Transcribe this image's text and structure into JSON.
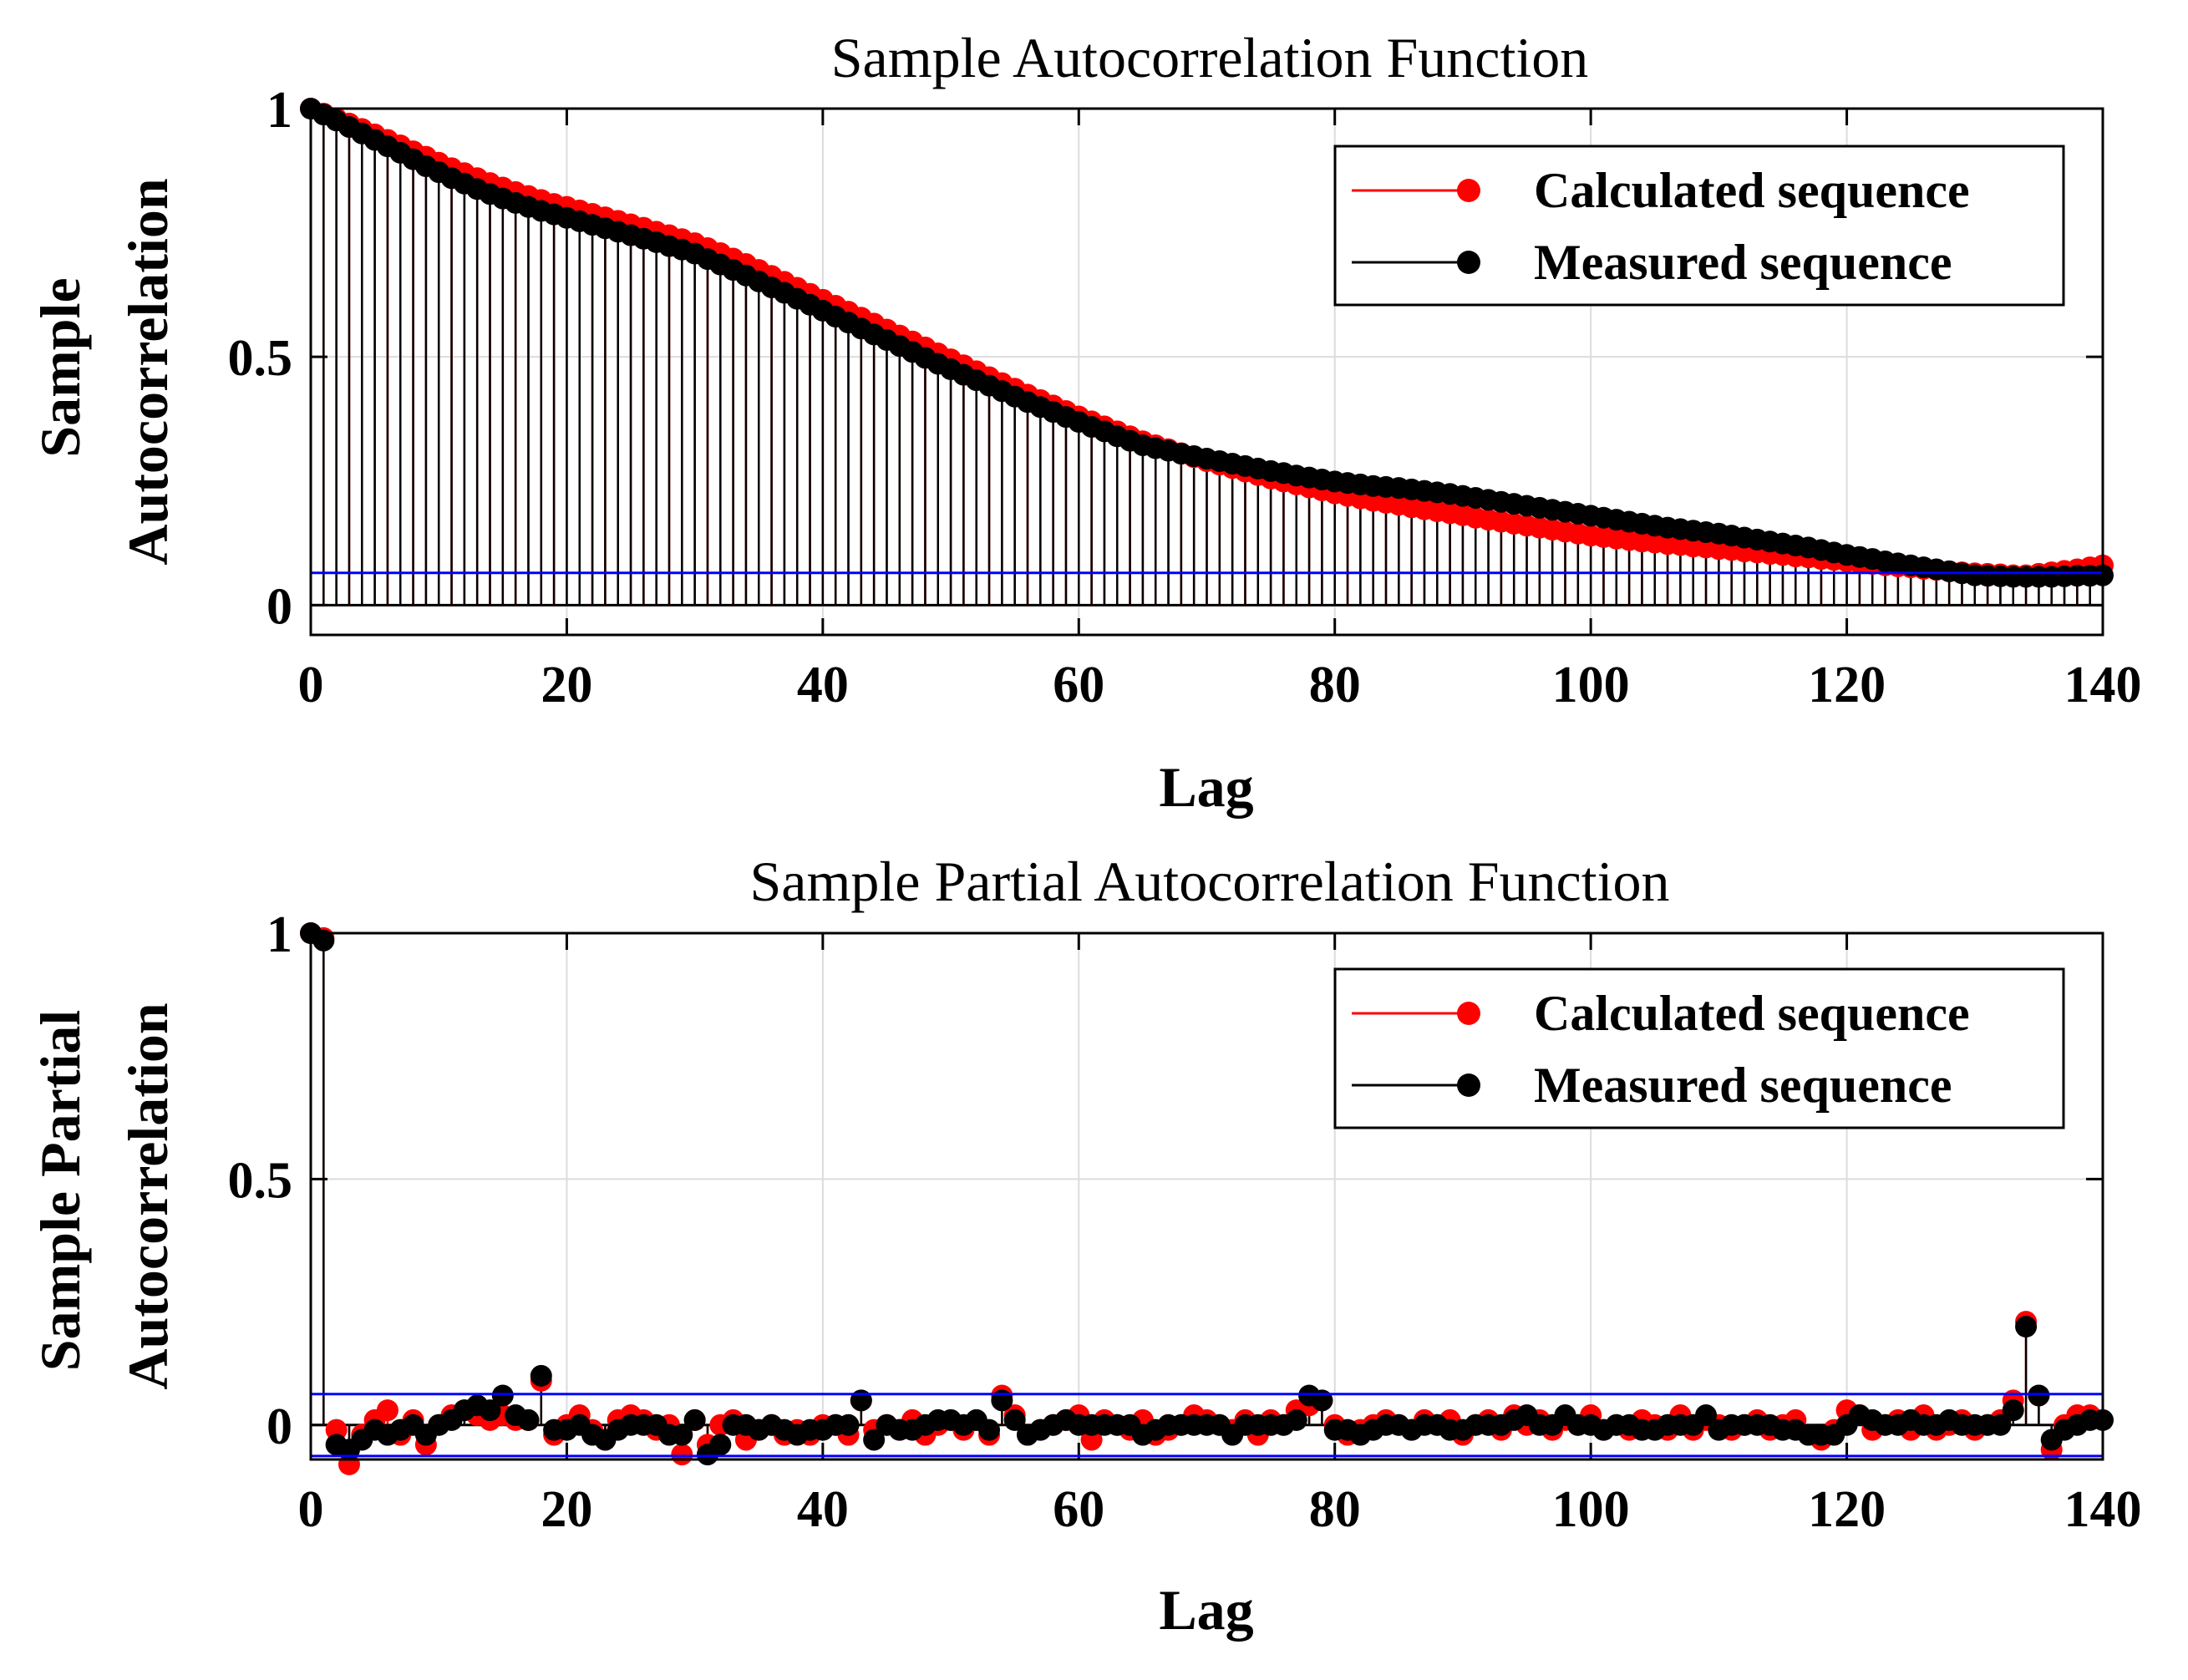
{
  "chart_data": [
    {
      "type": "stem",
      "title": "Sample Autocorrelation Function",
      "xlabel": "Lag",
      "ylabel_lines": [
        "Sample",
        "Autocorrelation"
      ],
      "xlim": [
        0,
        140
      ],
      "ylim": [
        -0.06,
        1.0
      ],
      "xticks": [
        "0",
        "20",
        "40",
        "60",
        "80",
        "100",
        "120",
        "140"
      ],
      "yticks": [
        "0",
        "0.5",
        "1"
      ],
      "confidence_bounds": [
        0.065
      ],
      "legend": {
        "position": "top-right",
        "entries": [
          "Calculated sequence",
          "Measured sequence"
        ]
      },
      "series": [
        {
          "name": "Calculated sequence",
          "color": "#ff0000",
          "x_start": 0,
          "values": [
            1.0,
            0.99,
            0.98,
            0.97,
            0.959,
            0.948,
            0.937,
            0.926,
            0.914,
            0.903,
            0.891,
            0.88,
            0.87,
            0.86,
            0.85,
            0.841,
            0.832,
            0.824,
            0.816,
            0.808,
            0.802,
            0.795,
            0.788,
            0.781,
            0.774,
            0.767,
            0.76,
            0.752,
            0.745,
            0.737,
            0.729,
            0.719,
            0.709,
            0.698,
            0.687,
            0.675,
            0.663,
            0.651,
            0.639,
            0.627,
            0.615,
            0.603,
            0.591,
            0.579,
            0.567,
            0.555,
            0.543,
            0.531,
            0.519,
            0.507,
            0.495,
            0.483,
            0.471,
            0.459,
            0.447,
            0.436,
            0.424,
            0.413,
            0.402,
            0.391,
            0.38,
            0.37,
            0.36,
            0.35,
            0.34,
            0.33,
            0.322,
            0.314,
            0.306,
            0.298,
            0.29,
            0.283,
            0.276,
            0.269,
            0.262,
            0.255,
            0.249,
            0.243,
            0.237,
            0.231,
            0.225,
            0.22,
            0.215,
            0.21,
            0.206,
            0.202,
            0.197,
            0.193,
            0.189,
            0.185,
            0.181,
            0.176,
            0.172,
            0.168,
            0.164,
            0.16,
            0.156,
            0.152,
            0.148,
            0.144,
            0.14,
            0.137,
            0.134,
            0.131,
            0.128,
            0.126,
            0.123,
            0.121,
            0.118,
            0.116,
            0.113,
            0.111,
            0.108,
            0.106,
            0.103,
            0.101,
            0.098,
            0.096,
            0.093,
            0.091,
            0.088,
            0.085,
            0.083,
            0.08,
            0.078,
            0.076,
            0.073,
            0.071,
            0.068,
            0.066,
            0.064,
            0.063,
            0.062,
            0.06,
            0.06,
            0.063,
            0.066,
            0.069,
            0.072,
            0.076,
            0.08
          ]
        },
        {
          "name": "Measured sequence",
          "color": "#000000",
          "x_start": 0,
          "values": [
            1.0,
            0.988,
            0.976,
            0.963,
            0.95,
            0.937,
            0.924,
            0.911,
            0.898,
            0.884,
            0.872,
            0.86,
            0.849,
            0.838,
            0.828,
            0.819,
            0.81,
            0.802,
            0.794,
            0.787,
            0.78,
            0.773,
            0.766,
            0.759,
            0.752,
            0.745,
            0.738,
            0.731,
            0.723,
            0.716,
            0.708,
            0.697,
            0.686,
            0.675,
            0.664,
            0.652,
            0.64,
            0.629,
            0.617,
            0.605,
            0.593,
            0.581,
            0.569,
            0.557,
            0.545,
            0.534,
            0.522,
            0.51,
            0.498,
            0.486,
            0.475,
            0.464,
            0.453,
            0.442,
            0.431,
            0.42,
            0.409,
            0.399,
            0.389,
            0.379,
            0.369,
            0.359,
            0.35,
            0.34,
            0.331,
            0.322,
            0.316,
            0.311,
            0.305,
            0.3,
            0.295,
            0.29,
            0.285,
            0.28,
            0.275,
            0.27,
            0.266,
            0.261,
            0.257,
            0.253,
            0.249,
            0.246,
            0.243,
            0.24,
            0.238,
            0.236,
            0.233,
            0.23,
            0.227,
            0.224,
            0.22,
            0.216,
            0.212,
            0.208,
            0.204,
            0.2,
            0.196,
            0.192,
            0.188,
            0.184,
            0.18,
            0.176,
            0.172,
            0.168,
            0.164,
            0.16,
            0.156,
            0.153,
            0.15,
            0.147,
            0.144,
            0.14,
            0.136,
            0.132,
            0.128,
            0.124,
            0.12,
            0.116,
            0.111,
            0.106,
            0.101,
            0.097,
            0.093,
            0.088,
            0.084,
            0.08,
            0.076,
            0.072,
            0.068,
            0.064,
            0.06,
            0.059,
            0.058,
            0.057,
            0.057,
            0.057,
            0.057,
            0.058,
            0.059,
            0.059,
            0.06
          ]
        }
      ]
    },
    {
      "type": "stem",
      "title": "Sample Partial Autocorrelation Function",
      "xlabel": "Lag",
      "ylabel_lines": [
        "Sample Partial",
        "Autocorrelation"
      ],
      "xlim": [
        0,
        140
      ],
      "ylim": [
        -0.07,
        1.0
      ],
      "xticks": [
        "0",
        "20",
        "40",
        "60",
        "80",
        "100",
        "120",
        "140"
      ],
      "yticks": [
        "0",
        "0.5",
        "1"
      ],
      "confidence_bounds": [
        0.063,
        -0.063
      ],
      "legend": {
        "position": "top-right",
        "entries": [
          "Calculated sequence",
          "Measured sequence"
        ]
      },
      "series": [
        {
          "name": "Calculated sequence",
          "color": "#ff0000",
          "x_start": 0,
          "values": [
            1.0,
            0.99,
            -0.01,
            -0.08,
            -0.02,
            0.01,
            0.03,
            -0.02,
            0.01,
            -0.04,
            0.0,
            0.02,
            0.03,
            0.02,
            0.01,
            0.02,
            0.01,
            0.01,
            0.09,
            -0.02,
            0.0,
            0.02,
            -0.01,
            -0.03,
            0.01,
            0.02,
            0.01,
            -0.01,
            0.0,
            -0.06,
            0.01,
            -0.04,
            0.0,
            0.01,
            -0.03,
            -0.01,
            0.0,
            -0.02,
            -0.01,
            -0.02,
            0.0,
            0.0,
            -0.02,
            0.05,
            -0.01,
            0.0,
            -0.01,
            0.01,
            -0.02,
            0.0,
            0.01,
            -0.01,
            0.01,
            -0.02,
            0.06,
            0.02,
            -0.02,
            -0.01,
            0.0,
            0.01,
            0.02,
            -0.03,
            0.01,
            0.0,
            -0.01,
            0.01,
            -0.02,
            -0.01,
            0.0,
            0.02,
            0.01,
            0.0,
            -0.01,
            0.01,
            -0.02,
            0.01,
            0.0,
            0.03,
            0.04,
            0.05,
            0.0,
            -0.02,
            -0.01,
            0.0,
            0.01,
            0.0,
            -0.01,
            0.01,
            0.0,
            0.01,
            -0.02,
            0.0,
            0.01,
            -0.01,
            0.02,
            0.0,
            0.01,
            -0.01,
            0.01,
            0.0,
            0.02,
            -0.01,
            0.0,
            -0.01,
            0.01,
            0.0,
            -0.01,
            0.02,
            -0.01,
            0.01,
            0.0,
            -0.01,
            0.0,
            0.01,
            -0.01,
            0.0,
            0.01,
            -0.02,
            -0.03,
            -0.01,
            0.03,
            0.02,
            -0.01,
            0.0,
            0.01,
            -0.01,
            0.02,
            -0.01,
            0.0,
            0.01,
            -0.01,
            0.0,
            0.01,
            0.05,
            0.21,
            0.06,
            -0.05,
            0.0,
            0.02,
            0.02
          ]
        },
        {
          "name": "Measured sequence",
          "color": "#000000",
          "x_start": 0,
          "values": [
            1.0,
            0.985,
            -0.04,
            -0.05,
            -0.03,
            -0.01,
            -0.02,
            -0.01,
            0.0,
            -0.02,
            0.0,
            0.01,
            0.03,
            0.04,
            0.03,
            0.06,
            0.02,
            0.01,
            0.1,
            -0.01,
            -0.01,
            0.0,
            -0.02,
            -0.03,
            -0.01,
            0.0,
            0.0,
            0.0,
            -0.02,
            -0.02,
            0.01,
            -0.06,
            -0.04,
            0.0,
            0.0,
            -0.01,
            0.0,
            -0.01,
            -0.02,
            -0.01,
            -0.01,
            0.0,
            0.0,
            0.05,
            -0.03,
            0.0,
            -0.01,
            -0.01,
            0.0,
            0.01,
            0.01,
            0.0,
            0.01,
            -0.01,
            0.05,
            0.01,
            -0.02,
            -0.01,
            0.0,
            0.01,
            0.0,
            0.0,
            0.0,
            0.0,
            0.0,
            -0.02,
            -0.01,
            0.0,
            0.0,
            0.0,
            0.0,
            0.0,
            -0.02,
            0.0,
            0.0,
            0.0,
            0.0,
            0.01,
            0.06,
            0.05,
            -0.01,
            -0.01,
            -0.02,
            -0.01,
            0.0,
            0.0,
            -0.01,
            0.0,
            0.0,
            -0.01,
            -0.01,
            0.0,
            0.0,
            0.0,
            0.01,
            0.02,
            0.0,
            0.0,
            0.02,
            0.0,
            0.0,
            -0.01,
            0.0,
            0.0,
            -0.01,
            -0.01,
            0.0,
            0.0,
            0.0,
            0.02,
            -0.01,
            0.0,
            0.0,
            0.0,
            0.0,
            -0.01,
            -0.01,
            -0.02,
            -0.02,
            -0.02,
            0.0,
            0.02,
            0.01,
            0.0,
            0.0,
            0.01,
            0.0,
            0.0,
            0.01,
            0.0,
            0.0,
            0.0,
            0.0,
            0.03,
            0.2,
            0.06,
            -0.03,
            -0.01,
            0.0,
            0.01,
            0.01
          ]
        }
      ]
    }
  ]
}
